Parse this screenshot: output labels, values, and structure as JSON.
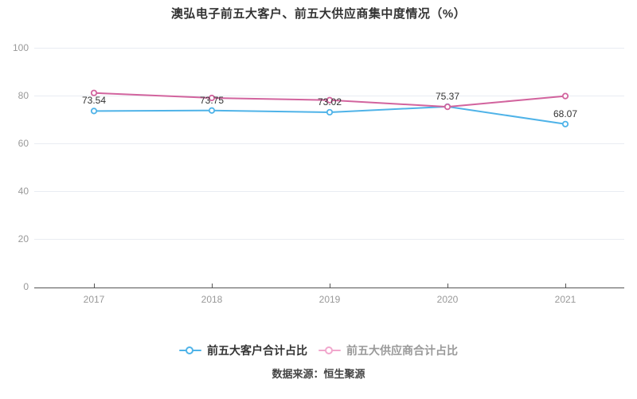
{
  "title": "澳弘电子前五大客户、前五大供应商集中度情况（%）",
  "source": "数据来源：恒生聚源",
  "legend": {
    "items": [
      {
        "label": "前五大客户合计占比",
        "color": "#4FB3E8",
        "text_color": "#333333"
      },
      {
        "label": "前五大供应商合计占比",
        "color": "#F1A7CD",
        "text_color": "#999999"
      }
    ]
  },
  "colors": {
    "customer_line": "#4FB3E8",
    "supplier_line": "#D2649E",
    "grid": "#E9ECF2",
    "axis": "#555555",
    "tick_label": "#999999",
    "data_label": "#333333",
    "title": "#333333"
  },
  "chart_data": {
    "type": "line",
    "title": "澳弘电子前五大客户、前五大供应商集中度情况（%）",
    "categories": [
      "2017",
      "2018",
      "2019",
      "2020",
      "2021"
    ],
    "series": [
      {
        "name": "前五大客户合计占比",
        "color": "#4FB3E8",
        "values": [
          73.54,
          73.75,
          73.02,
          75.37,
          68.07
        ],
        "labels": [
          "73.54",
          "73.75",
          "73.02",
          "75.37",
          "68.07"
        ],
        "show_labels": true
      },
      {
        "name": "前五大供应商合计占比",
        "color": "#D2649E",
        "values": [
          81.1,
          79.0,
          78.1,
          75.3,
          79.8
        ],
        "labels": [],
        "show_labels": false
      }
    ],
    "xlabel": "",
    "ylabel": "",
    "ylim": [
      0,
      100
    ],
    "yticks": [
      0,
      20,
      40,
      60,
      80,
      100
    ],
    "grid": true,
    "legend_position": "bottom"
  }
}
